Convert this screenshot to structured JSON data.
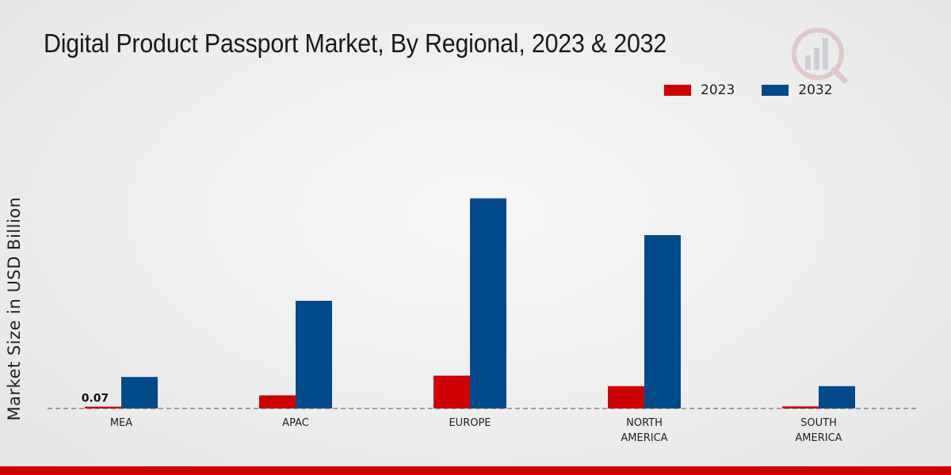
{
  "chart_data": {
    "type": "bar",
    "title": "Digital Product Passport Market, By Regional, 2023 & 2032",
    "xlabel": "",
    "ylabel": "Market Size in USD Billion",
    "categories": [
      "MEA",
      "APAC",
      "EUROPE",
      "NORTH AMERICA",
      "SOUTH AMERICA"
    ],
    "category_lines": [
      [
        "MEA"
      ],
      [
        "APAC"
      ],
      [
        "EUROPE"
      ],
      [
        "NORTH",
        "AMERICA"
      ],
      [
        "SOUTH",
        "AMERICA"
      ]
    ],
    "series": [
      {
        "name": "2023",
        "color": "#cc0000",
        "values": [
          0.07,
          0.5,
          1.25,
          0.85,
          0.08
        ]
      },
      {
        "name": "2032",
        "color": "#004a8c",
        "values": [
          1.2,
          4.1,
          8.0,
          6.6,
          0.85
        ]
      }
    ],
    "data_labels": [
      {
        "series": 0,
        "category": 0,
        "text": "0.07"
      }
    ],
    "ylim": [
      0,
      10
    ],
    "legend_position": "top-right",
    "grid": false
  }
}
